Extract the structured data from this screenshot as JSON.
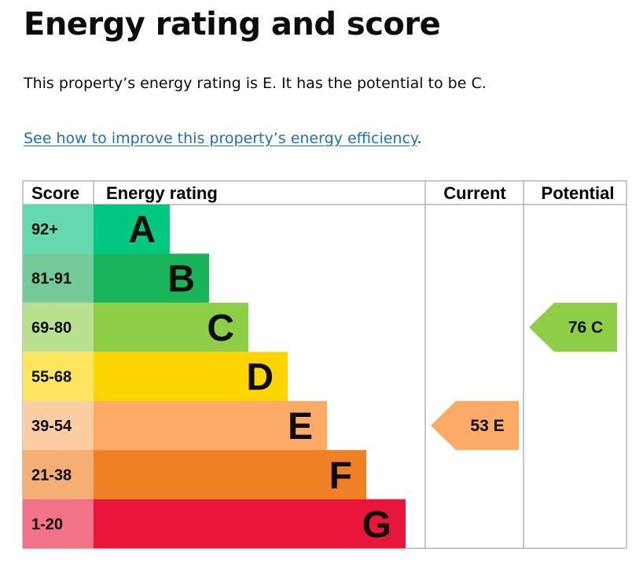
{
  "page": {
    "title": "Energy rating and score",
    "summary": "This property’s energy rating is E. It has the potential to be C.",
    "link_text": "See how to improve this property’s energy efficiency",
    "link_suffix": "."
  },
  "chart_data": {
    "type": "bar",
    "headers": {
      "score": "Score",
      "rating": "Energy rating",
      "current": "Current",
      "potential": "Potential"
    },
    "bands": [
      {
        "letter": "A",
        "score": "92+",
        "bar_color": "#00c781",
        "score_color": "#66d8b0",
        "level": 1
      },
      {
        "letter": "B",
        "score": "81-91",
        "bar_color": "#19b459",
        "score_color": "#73ca98",
        "level": 2
      },
      {
        "letter": "C",
        "score": "69-80",
        "bar_color": "#8dce46",
        "score_color": "#b8e08f",
        "level": 3
      },
      {
        "letter": "D",
        "score": "55-68",
        "bar_color": "#ffd500",
        "score_color": "#ffe45f",
        "level": 4
      },
      {
        "letter": "E",
        "score": "39-54",
        "bar_color": "#fcaa65",
        "score_color": "#fccca2",
        "level": 5
      },
      {
        "letter": "F",
        "score": "21-38",
        "bar_color": "#ef8023",
        "score_color": "#f5ae73",
        "level": 6
      },
      {
        "letter": "G",
        "score": "1-20",
        "bar_color": "#e9153b",
        "score_color": "#f27388",
        "level": 7
      }
    ],
    "current": {
      "value": 53,
      "letter": "E",
      "label": "53 E"
    },
    "potential": {
      "value": 76,
      "letter": "C",
      "label": "76 C"
    },
    "colors": {
      "border": "#b1b4b6",
      "text": "#0b0c0c",
      "link": "#1d70b8"
    }
  }
}
